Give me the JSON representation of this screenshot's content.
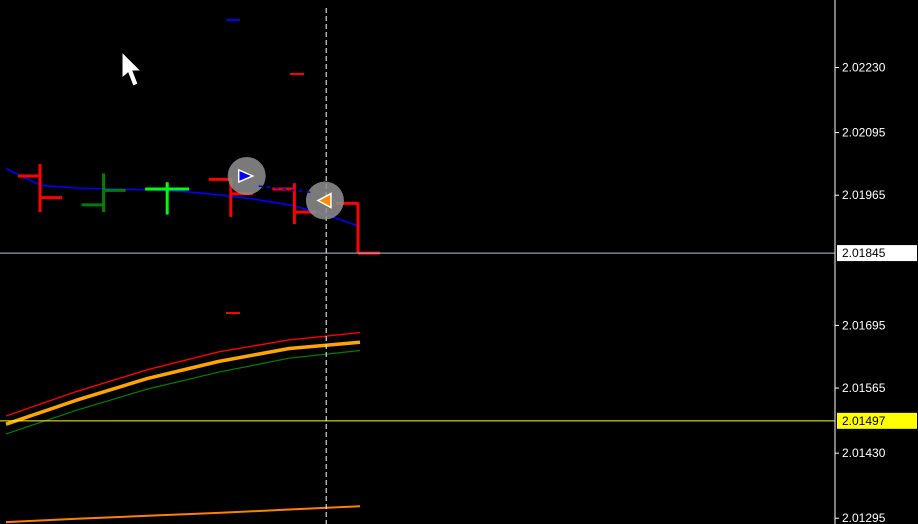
{
  "chart_data": {
    "type": "line",
    "title": "",
    "xlabel": "",
    "ylabel": "",
    "ylim": [
      2.01283,
      2.0237
    ],
    "price_axis": {
      "ticks": [
        "2.02230",
        "2.02095",
        "2.01965",
        "2.01695",
        "2.01565",
        "2.01430",
        "2.01295"
      ],
      "current_bid": "2.01845",
      "current_level": "2.01497"
    },
    "bars": [
      {
        "high": 2.0203,
        "low": 2.0193,
        "open": 2.02005,
        "close": 2.0196,
        "color": "#ff0000"
      },
      {
        "high": 2.0201,
        "low": 2.0193,
        "open": 2.01945,
        "close": 2.01975,
        "color": "#008000"
      },
      {
        "high": 2.01992,
        "low": 2.01925,
        "open": 2.01978,
        "close": 2.01978,
        "color": "#00ff00"
      },
      {
        "high": 2.02,
        "low": 2.0192,
        "open": 2.01998,
        "close": 2.01968,
        "color": "#ff0000"
      },
      {
        "high": 2.0199,
        "low": 2.01905,
        "open": 2.01978,
        "close": 2.0193,
        "color": "#ff0000"
      },
      {
        "high": 2.0195,
        "low": 2.01845,
        "open": 2.01948,
        "close": 2.01845,
        "color": "#ff0000"
      }
    ],
    "series": [
      {
        "color": "#0000ff",
        "values": [
          2.0202,
          2.01985,
          2.0198,
          2.01978,
          2.01976,
          2.01973,
          2.01966,
          2.01957,
          2.01945,
          2.01926,
          2.019
        ]
      },
      {
        "color": "#ff0000",
        "values": [
          2.01507,
          2.01558,
          2.01603,
          2.0164,
          2.01665,
          2.0168
        ]
      },
      {
        "color": "#ffa500",
        "values": [
          2.0149,
          2.0154,
          2.01585,
          2.0162,
          2.01647,
          2.0166
        ]
      },
      {
        "color": "#008000",
        "values": [
          2.0147,
          2.01519,
          2.01563,
          2.01598,
          2.01627,
          2.01643
        ]
      },
      {
        "color": "#ff8000",
        "values": [
          2.01287,
          2.01294,
          2.013,
          2.01306,
          2.01313,
          2.0132
        ]
      }
    ],
    "markers": [
      {
        "type": "buy",
        "bar_offset": 3.25,
        "price": 2.02005,
        "color": "#0000ff"
      },
      {
        "type": "sell",
        "bar_offset": 4.48,
        "price": 2.01954,
        "color": "#ff8c00"
      }
    ],
    "crosshair_bar_offset": 4.5,
    "colors": {
      "background": "#000000",
      "axis": "#ffffff",
      "bid_line": "#b0c4de",
      "level_line": "#ffff00",
      "level_label_bg": "#ffff00",
      "level_label_text": "#000000",
      "bid_label_bg": "#ffffff",
      "bid_label_text": "#000000",
      "cursor": "#ffffff"
    }
  }
}
